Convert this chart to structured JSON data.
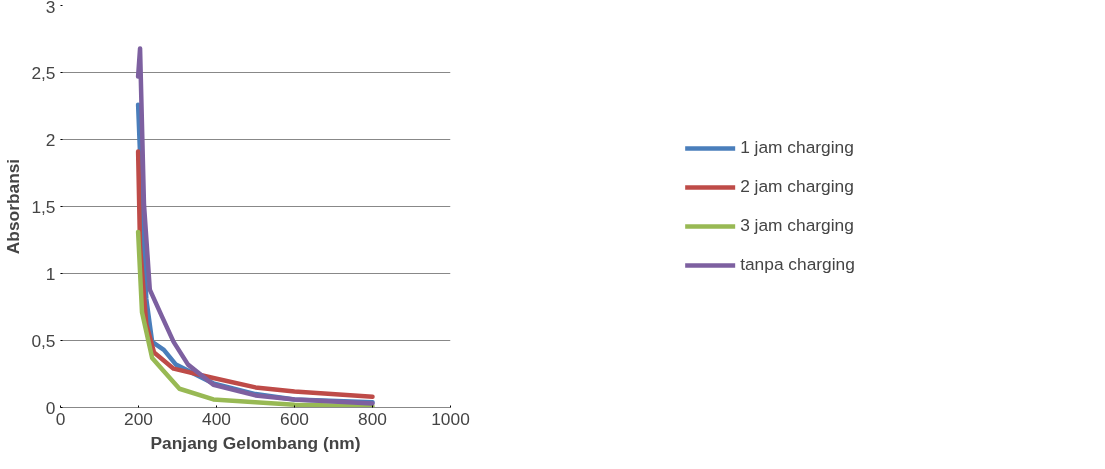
{
  "chart_data": {
    "type": "line",
    "xlabel": "Panjang Gelombang (nm)",
    "ylabel": "Absorbansi",
    "xlim": [
      0,
      1000
    ],
    "xticks": [
      0,
      200,
      400,
      600,
      800,
      1000
    ],
    "ylim": [
      0,
      3
    ],
    "yticks": [
      0,
      {
        "value": 0.5,
        "label": "0,5"
      },
      1,
      {
        "value": 1.5,
        "label": "1,5"
      },
      2,
      {
        "value": 2.5,
        "label": "2,5"
      },
      3
    ],
    "grid": "y",
    "legend": "right",
    "marker": "none",
    "line_style": "solid",
    "series": [
      {
        "name": "1 jam charging",
        "color": "#4a7ebb",
        "x": [
          199,
          209,
          220,
          235,
          265,
          296,
          392,
          500,
          600,
          800
        ],
        "values": [
          2.26,
          1.52,
          0.81,
          0.49,
          0.43,
          0.32,
          0.18,
          0.1,
          0.06,
          0.04
        ]
      },
      {
        "name": "2 jam charging",
        "color": "#be4b48",
        "x": [
          199,
          204,
          220,
          240,
          290,
          392,
          500,
          600,
          800
        ],
        "values": [
          1.91,
          1.2,
          0.62,
          0.41,
          0.29,
          0.22,
          0.15,
          0.12,
          0.08
        ]
      },
      {
        "name": "3 jam charging",
        "color": "#98b954",
        "x": [
          199,
          209,
          235,
          265,
          305,
          392,
          500,
          600,
          800
        ],
        "values": [
          1.31,
          0.71,
          0.37,
          0.27,
          0.14,
          0.06,
          0.04,
          0.02,
          0.01
        ]
      },
      {
        "name": "tanpa charging",
        "color": "#7d60a0",
        "x": [
          199,
          204,
          214,
          229,
          260,
          290,
          327,
          392,
          500,
          600,
          800
        ],
        "values": [
          2.47,
          2.68,
          1.52,
          0.88,
          0.68,
          0.49,
          0.32,
          0.17,
          0.09,
          0.06,
          0.03
        ]
      }
    ]
  }
}
